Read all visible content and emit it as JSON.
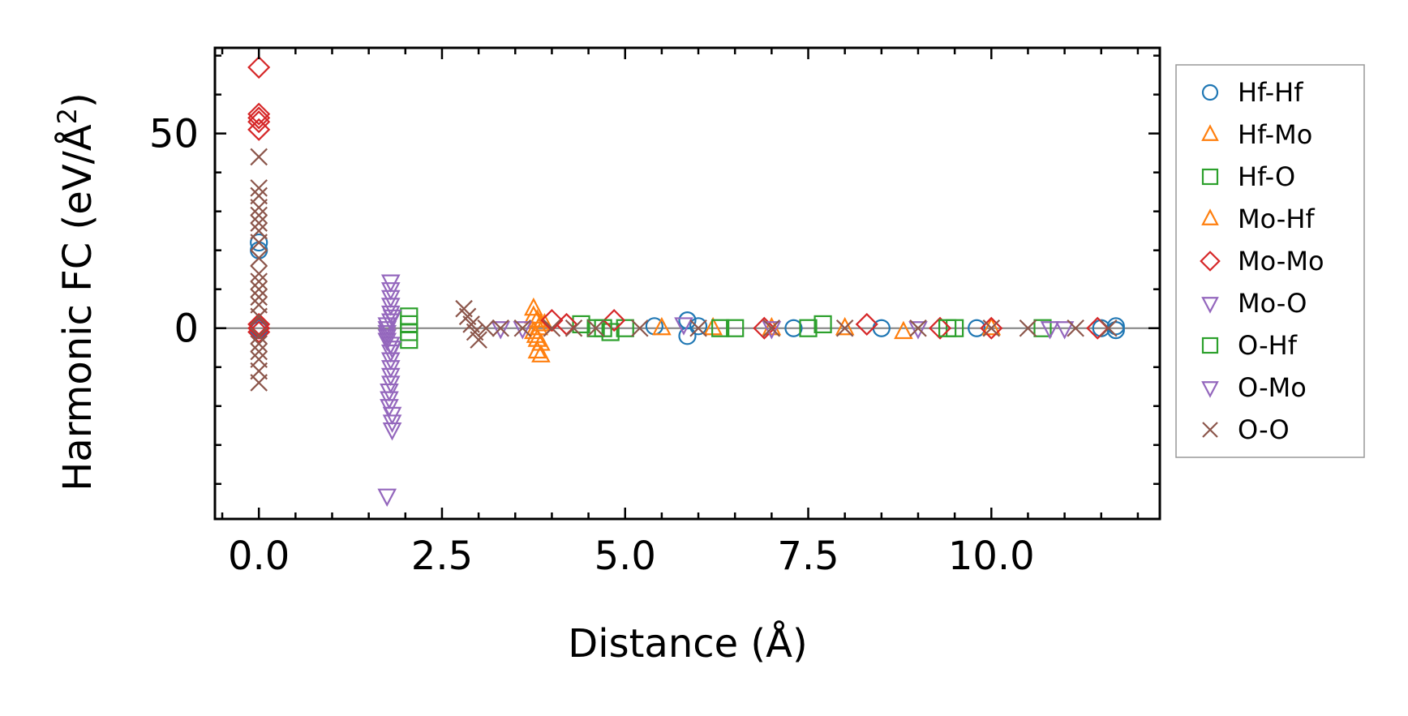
{
  "chart_data": {
    "type": "scatter",
    "title": "",
    "xlabel": "Distance (Å)",
    "ylabel_main": "Harmonic FC (eV/Å",
    "ylabel_sup": "2",
    "ylabel_close": ")",
    "xlim": [
      -0.6,
      12.3
    ],
    "ylim": [
      -49,
      72
    ],
    "xticks": [
      {
        "value": 0.0,
        "label": "0.0"
      },
      {
        "value": 2.5,
        "label": "2.5"
      },
      {
        "value": 5.0,
        "label": "5.0"
      },
      {
        "value": 7.5,
        "label": "7.5"
      },
      {
        "value": 10.0,
        "label": "10.0"
      }
    ],
    "yticks": [
      {
        "value": 0,
        "label": "0"
      },
      {
        "value": 50,
        "label": "50"
      }
    ],
    "x_minor_step": 0.5,
    "y_minor_step": 10,
    "reference_line_y": 0,
    "legend_position": "outside-right",
    "series": [
      {
        "name": "Hf-Hf",
        "marker": "circle",
        "color": "#1f77b4",
        "x": [
          0,
          0,
          0,
          0,
          0,
          5.4,
          5.85,
          5.85,
          6.0,
          7.3,
          8.5,
          9.8,
          11.5,
          11.7,
          11.7
        ],
        "y": [
          22,
          20,
          0.5,
          -0.5,
          0,
          0.5,
          2,
          -2,
          0.5,
          0,
          0,
          0,
          0,
          0.5,
          -0.5
        ]
      },
      {
        "name": "Hf-Mo",
        "marker": "triangle-up",
        "color": "#ff7f0e",
        "x": [
          3.75,
          3.75,
          3.75,
          3.8,
          3.8,
          3.8,
          3.85,
          3.85,
          3.85,
          5.5,
          7.0,
          8.8,
          10.0
        ],
        "y": [
          5,
          3,
          -1,
          2,
          -3,
          -6,
          1,
          -4,
          -7,
          0,
          0,
          -1,
          0
        ]
      },
      {
        "name": "Hf-O",
        "marker": "square",
        "color": "#2ca02c",
        "x": [
          2.05,
          2.05,
          2.05,
          2.05,
          4.4,
          4.6,
          4.8,
          5.0,
          6.5,
          7.5,
          9.5,
          10.7
        ],
        "y": [
          3,
          1,
          -1,
          -3,
          1,
          0,
          -1,
          0,
          0,
          0,
          0,
          0
        ]
      },
      {
        "name": "Mo-Hf",
        "marker": "triangle-up",
        "color": "#ff7f0e",
        "x": [
          3.78,
          3.82,
          3.9,
          6.2,
          8.0
        ],
        "y": [
          -2,
          0,
          1,
          0,
          0
        ]
      },
      {
        "name": "Mo-Mo",
        "marker": "diamond",
        "color": "#d62728",
        "x": [
          0,
          0,
          0,
          0,
          0,
          0,
          0,
          0,
          4.0,
          4.2,
          4.85,
          6.9,
          8.3,
          9.3,
          10.0,
          11.45
        ],
        "y": [
          67,
          55,
          54,
          53,
          51,
          1,
          0,
          -1,
          2,
          1,
          2,
          0,
          1,
          0,
          0,
          0
        ]
      },
      {
        "name": "Mo-O",
        "marker": "triangle-down",
        "color": "#9467bd",
        "x": [
          1.75,
          1.75,
          1.75,
          1.75,
          1.75,
          1.75,
          1.8,
          1.8,
          1.8,
          1.8,
          1.8,
          1.8,
          1.8,
          1.8,
          1.8,
          1.8,
          1.8,
          1.8,
          3.3,
          3.6,
          5.8,
          7.0,
          9.0,
          10.8
        ],
        "y": [
          -43,
          1,
          0,
          -1,
          -2,
          -3,
          12,
          10,
          8,
          6,
          4,
          2,
          -4,
          -6,
          -8,
          -10,
          -12,
          -14,
          0,
          0,
          1,
          0,
          0,
          0
        ]
      },
      {
        "name": "O-Hf",
        "marker": "square",
        "color": "#2ca02c",
        "x": [
          4.7,
          6.3,
          7.7,
          9.4
        ],
        "y": [
          0,
          0,
          1,
          0
        ]
      },
      {
        "name": "O-Mo",
        "marker": "triangle-down",
        "color": "#9467bd",
        "x": [
          1.78,
          1.78,
          1.78,
          1.82,
          1.82,
          1.82,
          1.82,
          1.82,
          11.0
        ],
        "y": [
          -16,
          -18,
          -20,
          -22,
          -24,
          -26,
          -5,
          3,
          0
        ]
      },
      {
        "name": "O-O",
        "marker": "x",
        "color": "#8c564b",
        "x": [
          0,
          0,
          0,
          0,
          0,
          0,
          0,
          0,
          0,
          0,
          0,
          0,
          0,
          0,
          0,
          0,
          0,
          0,
          0,
          0,
          0,
          2.8,
          2.85,
          2.9,
          2.95,
          3.0,
          3.1,
          3.3,
          3.6,
          4.0,
          4.3,
          4.6,
          5.2,
          6.0,
          7.0,
          8.0,
          9.0,
          10.0,
          10.5,
          11.15,
          11.6
        ],
        "y": [
          44,
          36,
          34,
          31,
          29,
          27,
          25,
          22,
          18,
          14,
          12,
          10,
          8,
          6,
          3,
          -2,
          -4,
          -6,
          -8,
          -11,
          -14,
          5,
          3,
          1,
          -1,
          -3,
          0,
          0,
          0,
          0,
          0,
          0,
          0,
          0,
          0,
          0,
          0,
          0,
          0,
          0,
          0
        ]
      }
    ]
  }
}
